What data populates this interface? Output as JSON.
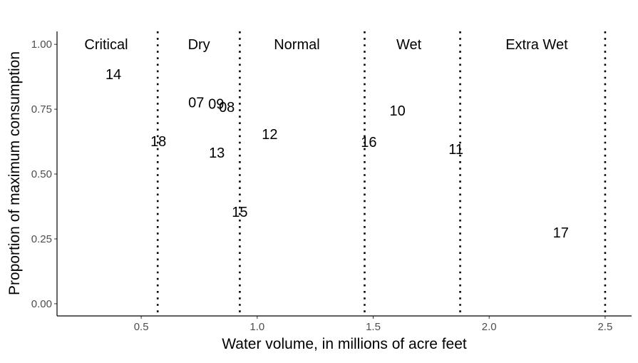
{
  "chart_data": {
    "type": "scatter",
    "marker": "text-labels",
    "xlabel": "Water volume, in millions of acre feet",
    "ylabel": "Proportion of maximum consumption",
    "xlim": [
      0.137,
      2.614
    ],
    "ylim": [
      -0.047,
      1.05
    ],
    "xticks": [
      0.5,
      1.0,
      1.5,
      2.0,
      2.5
    ],
    "xtick_labels": [
      "0.5",
      "1.0",
      "1.5",
      "2.0",
      "2.5"
    ],
    "yticks": [
      0,
      0.25,
      0.5,
      0.75,
      1.0
    ],
    "ytick_labels": [
      "0.00",
      "0.25",
      "0.50",
      "0.75",
      "1.00"
    ],
    "grid": false,
    "points": [
      {
        "label": "14",
        "x": 0.38,
        "y": 0.885
      },
      {
        "label": "07",
        "x": 0.737,
        "y": 0.777
      },
      {
        "label": "09",
        "x": 0.823,
        "y": 0.771
      },
      {
        "label": "08",
        "x": 0.869,
        "y": 0.758
      },
      {
        "label": "10",
        "x": 1.605,
        "y": 0.745
      },
      {
        "label": "12",
        "x": 1.054,
        "y": 0.654
      },
      {
        "label": "18",
        "x": 0.574,
        "y": 0.626
      },
      {
        "label": "16",
        "x": 1.481,
        "y": 0.624
      },
      {
        "label": "11",
        "x": 1.857,
        "y": 0.596
      },
      {
        "label": "13",
        "x": 0.826,
        "y": 0.582
      },
      {
        "label": "15",
        "x": 0.925,
        "y": 0.354
      },
      {
        "label": "17",
        "x": 2.309,
        "y": 0.275
      }
    ],
    "thresholds": [
      0.571,
      0.925,
      1.463,
      1.875,
      2.5
    ],
    "regions": [
      {
        "label": "Critical",
        "x": 0.349,
        "y": 1.0
      },
      {
        "label": "Dry",
        "x": 0.749,
        "y": 1.0
      },
      {
        "label": "Normal",
        "x": 1.171,
        "y": 1.0
      },
      {
        "label": "Wet",
        "x": 1.654,
        "y": 1.0
      },
      {
        "label": "Extra Wet",
        "x": 2.205,
        "y": 1.0
      }
    ]
  }
}
